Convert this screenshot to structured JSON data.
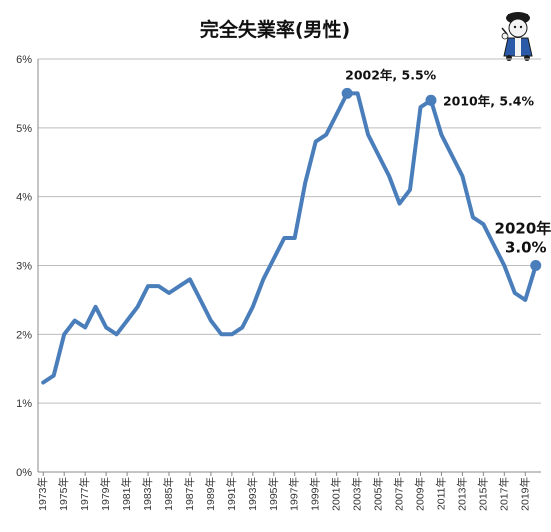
{
  "chart_data": {
    "type": "line",
    "title": "完全失業率(男性)",
    "xlabel": "",
    "ylabel": "",
    "x": [
      1973,
      1974,
      1975,
      1976,
      1977,
      1978,
      1979,
      1980,
      1981,
      1982,
      1983,
      1984,
      1985,
      1986,
      1987,
      1988,
      1989,
      1990,
      1991,
      1992,
      1993,
      1994,
      1995,
      1996,
      1997,
      1998,
      1999,
      2000,
      2001,
      2002,
      2003,
      2004,
      2005,
      2006,
      2007,
      2008,
      2009,
      2010,
      2011,
      2012,
      2013,
      2014,
      2015,
      2016,
      2017,
      2018,
      2019,
      2020
    ],
    "x_tick_labels": [
      "1973年",
      "1975年",
      "1977年",
      "1979年",
      "1981年",
      "1983年",
      "1985年",
      "1987年",
      "1989年",
      "1991年",
      "1993年",
      "1995年",
      "1997年",
      "1999年",
      "2001年",
      "2003年",
      "2005年",
      "2007年",
      "2009年",
      "2011年",
      "2013年",
      "2015年",
      "2017年",
      "2019年"
    ],
    "series": [
      {
        "values": [
          1.3,
          1.4,
          2.0,
          2.2,
          2.1,
          2.4,
          2.1,
          2.0,
          2.2,
          2.4,
          2.7,
          2.7,
          2.6,
          2.7,
          2.8,
          2.5,
          2.2,
          2.0,
          2.0,
          2.1,
          2.4,
          2.8,
          3.1,
          3.4,
          3.4,
          4.2,
          4.8,
          4.9,
          5.2,
          5.5,
          5.5,
          4.9,
          4.6,
          4.3,
          3.9,
          4.1,
          5.3,
          5.4,
          4.9,
          4.6,
          4.3,
          3.7,
          3.6,
          3.3,
          3.0,
          2.6,
          2.5,
          3.0
        ],
        "color": "#4a7ebb"
      }
    ],
    "ylim": [
      0,
      6
    ],
    "yticks": [
      0,
      1,
      2,
      3,
      4,
      5,
      6
    ],
    "ytick_labels": [
      "0%",
      "1%",
      "2%",
      "3%",
      "4%",
      "5%",
      "6%"
    ],
    "grid": true,
    "legend": "none",
    "annotations": [
      {
        "x": 2002,
        "y": 5.5,
        "lines": [
          "2002年, 5.5%"
        ],
        "size": "normal"
      },
      {
        "x": 2010,
        "y": 5.4,
        "lines": [
          "2010年, 5.4%"
        ],
        "size": "normal"
      },
      {
        "x": 2020,
        "y": 3.0,
        "lines": [
          "2020年,",
          "3.0%"
        ],
        "size": "large"
      }
    ]
  },
  "mascot": {
    "icon": "mascot-icon",
    "colors": {
      "body": "#2a59a8",
      "outline": "#1a1a1a"
    }
  }
}
